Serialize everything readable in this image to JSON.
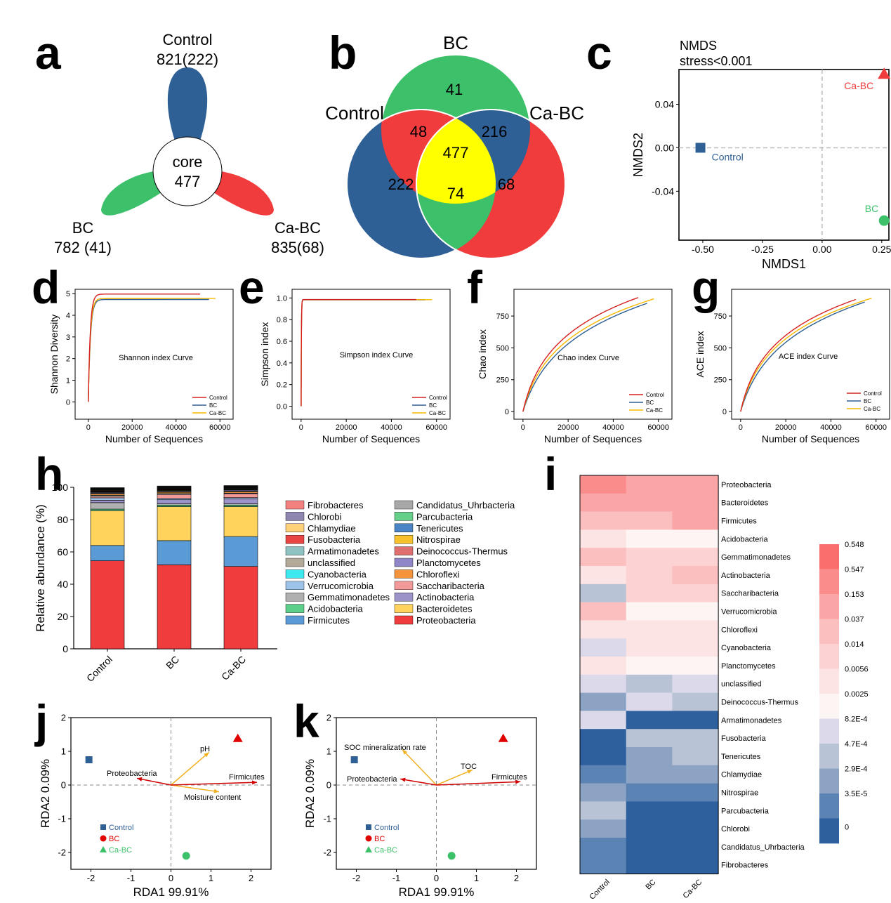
{
  "panel_letters": {
    "a": "a",
    "b": "b",
    "c": "c",
    "d": "d",
    "e": "e",
    "f": "f",
    "g": "g",
    "h": "h",
    "i": "i",
    "j": "j",
    "k": "k"
  },
  "colors": {
    "control": "#2e5f95",
    "bc": "#3cc06a",
    "cabc": "#f03c3c",
    "core_yellow": "#ffff00",
    "red_line": "#d62020",
    "blue_line": "#2e5f95",
    "orange_line": "#f5b800",
    "arrow_red": "#d00000",
    "arrow_orange": "#f0b020"
  },
  "chart_data": [
    {
      "id": "a",
      "type": "flower",
      "core_label": "core",
      "core_value": "477",
      "petals": [
        {
          "name": "Control",
          "value": "821(222)"
        },
        {
          "name": "BC",
          "value": "782 (41)"
        },
        {
          "name": "Ca-BC",
          "value": "835(68)"
        }
      ]
    },
    {
      "id": "b",
      "type": "venn",
      "sets": [
        "BC",
        "Control",
        "Ca-BC"
      ],
      "regions": {
        "bc_only": "41",
        "control_only": "222",
        "cabc_only": "68",
        "control_bc": "48",
        "bc_cabc": "216",
        "control_cabc": "74",
        "all": "477"
      }
    },
    {
      "id": "c",
      "type": "scatter",
      "title": "NMDS",
      "subtitle": "stress<0.001",
      "xlabel": "NMDS1",
      "ylabel": "NMDS2",
      "xlim": [
        -0.6,
        0.28
      ],
      "ylim": [
        -0.085,
        0.072
      ],
      "xticks": [
        "-0.50",
        "-0.25",
        "0.00",
        "0.25"
      ],
      "xtick_values": [
        -0.5,
        -0.25,
        0,
        0.25
      ],
      "yticks": [
        "0.04",
        "0.00",
        "-0.04"
      ],
      "ytick_values": [
        0.04,
        0,
        -0.04
      ],
      "points": [
        {
          "name": "Control",
          "x": -0.51,
          "y": 0.0,
          "marker": "square"
        },
        {
          "name": "Ca-BC",
          "x": 0.26,
          "y": 0.068,
          "marker": "triangle"
        },
        {
          "name": "BC",
          "x": 0.26,
          "y": -0.067,
          "marker": "circle"
        }
      ]
    },
    {
      "id": "d",
      "type": "line",
      "title": "Shannon index Curve",
      "xlabel": "Number of Sequences",
      "ylabel": "Shannon Diversity",
      "xlim": [
        -6000,
        66000
      ],
      "ylim": [
        -0.8,
        5.2
      ],
      "xticks": [
        "0",
        "20000",
        "40000",
        "60000"
      ],
      "xtick_values": [
        0,
        20000,
        40000,
        60000
      ],
      "yticks": [
        "0",
        "1",
        "2",
        "3",
        "4",
        "5"
      ],
      "ytick_values": [
        0,
        1,
        2,
        3,
        4,
        5
      ],
      "curve": "plateau",
      "series": [
        {
          "name": "Control",
          "max_x": 51000,
          "plateau": 4.98,
          "k": 900
        },
        {
          "name": "BC",
          "max_x": 55000,
          "plateau": 4.73,
          "k": 1000
        },
        {
          "name": "Ca-BC",
          "max_x": 58000,
          "plateau": 4.78,
          "k": 950
        }
      ]
    },
    {
      "id": "e",
      "type": "line",
      "title": "Simpson index Curve",
      "xlabel": "Number of Sequences",
      "ylabel": "Simpson index",
      "xlim": [
        -4000,
        66000
      ],
      "ylim": [
        -0.12,
        1.08
      ],
      "xticks": [
        "0",
        "20000",
        "40000",
        "60000"
      ],
      "xtick_values": [
        0,
        20000,
        40000,
        60000
      ],
      "yticks": [
        "0.0",
        "0.2",
        "0.4",
        "0.6",
        "0.8",
        "1.0"
      ],
      "ytick_values": [
        0,
        0.2,
        0.4,
        0.6,
        0.8,
        1.0
      ],
      "curve": "plateau",
      "series": [
        {
          "name": "Control",
          "max_x": 51000,
          "plateau": 0.985,
          "k": 120
        },
        {
          "name": "BC",
          "max_x": 55000,
          "plateau": 0.983,
          "k": 120
        },
        {
          "name": "Ca-BC",
          "max_x": 58000,
          "plateau": 0.984,
          "k": 120
        }
      ]
    },
    {
      "id": "f",
      "type": "line",
      "title": "Chao index Curve",
      "xlabel": "Number of Sequences",
      "ylabel": "Chao index",
      "xlim": [
        -4000,
        66000
      ],
      "ylim": [
        -60,
        960
      ],
      "xticks": [
        "0",
        "20000",
        "40000",
        "60000"
      ],
      "xtick_values": [
        0,
        20000,
        40000,
        60000
      ],
      "yticks": [
        "0",
        "250",
        "500",
        "750"
      ],
      "ytick_values": [
        0,
        250,
        500,
        750
      ],
      "curve": "saturation",
      "series": [
        {
          "name": "Control",
          "max_x": 51000,
          "end_y": 895,
          "k": 4500
        },
        {
          "name": "BC",
          "max_x": 55000,
          "end_y": 850,
          "k": 6500
        },
        {
          "name": "Ca-BC",
          "max_x": 58000,
          "end_y": 885,
          "k": 5000
        }
      ]
    },
    {
      "id": "g",
      "type": "line",
      "title": "ACE index Curve",
      "xlabel": "Number of Sequences",
      "ylabel": "ACE index",
      "xlim": [
        -4000,
        66000
      ],
      "ylim": [
        -60,
        960
      ],
      "xticks": [
        "0",
        "20000",
        "40000",
        "60000"
      ],
      "xtick_values": [
        0,
        20000,
        40000,
        60000
      ],
      "yticks": [
        "0",
        "250",
        "500",
        "750"
      ],
      "ytick_values": [
        0,
        250,
        500,
        750
      ],
      "curve": "saturation",
      "series": [
        {
          "name": "Control",
          "max_x": 51000,
          "end_y": 880,
          "k": 4200
        },
        {
          "name": "BC",
          "max_x": 55000,
          "end_y": 860,
          "k": 6000
        },
        {
          "name": "Ca-BC",
          "max_x": 58000,
          "end_y": 890,
          "k": 4600
        }
      ]
    },
    {
      "id": "h",
      "type": "bar",
      "stacked": true,
      "ylabel": "Relative abundance (%)",
      "ylim": [
        0,
        100
      ],
      "yticks": [
        "0",
        "20",
        "40",
        "60",
        "80",
        "100"
      ],
      "ytick_values": [
        0,
        20,
        40,
        60,
        80,
        100
      ],
      "categories": [
        "Control",
        "BC",
        "Ca-BC"
      ],
      "series": [
        {
          "name": "Proteobacteria",
          "color": "#f03c3c",
          "values": [
            54.5,
            52,
            51
          ]
        },
        {
          "name": "Firmicutes",
          "color": "#5b9bd5",
          "values": [
            9.5,
            15,
            18.5
          ]
        },
        {
          "name": "Bacteroidetes",
          "color": "#ffd35c",
          "values": [
            21.5,
            21,
            18.5
          ]
        },
        {
          "name": "Acidobacteria",
          "color": "#5ccf8a",
          "values": [
            1,
            1,
            1
          ]
        },
        {
          "name": "Gemmatimonadetes",
          "color": "#b0b0b0",
          "values": [
            4,
            0.8,
            0.8
          ]
        },
        {
          "name": "Actinobacteria",
          "color": "#9c94c8",
          "values": [
            1.5,
            2.5,
            3
          ]
        },
        {
          "name": "Verrucomicrobia",
          "color": "#9ec3e8",
          "values": [
            1.5,
            0.8,
            0.8
          ]
        },
        {
          "name": "Saccharibacteria",
          "color": "#f29a9a",
          "values": [
            1,
            2.5,
            2.5
          ]
        },
        {
          "name": "Cyanobacteria",
          "color": "#3ee8f0",
          "values": [
            0.5,
            0.5,
            0.3
          ]
        },
        {
          "name": "Chloroflexi",
          "color": "#f5923c",
          "values": [
            0.8,
            0.8,
            0.8
          ]
        },
        {
          "name": "unclassified",
          "color": "#b3aa9a",
          "values": [
            0.5,
            0.5,
            0.5
          ]
        },
        {
          "name": "Planctomycetes",
          "color": "#8e86c8",
          "values": [
            0.5,
            0.4,
            0.5
          ]
        },
        {
          "name": "Armatimonadetes",
          "color": "#8fc3c3",
          "values": [
            0.3,
            0.3,
            0.3
          ]
        },
        {
          "name": "Nitrospirae",
          "color": "#f8c22c",
          "values": [
            0.3,
            0.3,
            0.3
          ]
        },
        {
          "name": "Fusobacteria",
          "color": "#ea4545",
          "values": [
            0.3,
            0.3,
            0.2
          ]
        },
        {
          "name": "Deinococcus-Thermus",
          "color": "#e07070",
          "values": [
            0.3,
            0.3,
            0.3
          ]
        },
        {
          "name": "Chlamydiae",
          "color": "#ffd27a",
          "values": [
            0.3,
            0.3,
            0.3
          ]
        },
        {
          "name": "Tenericutes",
          "color": "#4a84c4",
          "values": [
            0.3,
            0.3,
            0.3
          ]
        },
        {
          "name": "Chlorobi",
          "color": "#8f86b0",
          "values": [
            0.3,
            0.3,
            0.3
          ]
        },
        {
          "name": "Parcubacteria",
          "color": "#66d08a",
          "values": [
            0.3,
            0.3,
            0.3
          ]
        },
        {
          "name": "Fibrobacteres",
          "color": "#f58080",
          "values": [
            0.3,
            0.3,
            0.3
          ]
        },
        {
          "name": "Candidatus_Uhrbacteria",
          "color": "#a8a8a8",
          "values": [
            0.3,
            0.3,
            0.3
          ]
        }
      ],
      "legend_left": [
        "Fibrobacteres",
        "Chlorobi",
        "Chlamydiae",
        "Fusobacteria",
        "Armatimonadetes",
        "unclassified",
        "Cyanobacteria",
        "Verrucomicrobia",
        "Gemmatimonadetes",
        "Acidobacteria",
        "Firmicutes"
      ],
      "legend_right": [
        "Candidatus_Uhrbacteria",
        "Parcubacteria",
        "Tenericutes",
        "Nitrospirae",
        "Deinococcus-Thermus",
        "Planctomycetes",
        "Chloroflexi",
        "Saccharibacteria",
        "Actinobacteria",
        "Bacteroidetes",
        "Proteobacteria"
      ]
    },
    {
      "id": "i",
      "type": "heatmap",
      "columns": [
        "Control",
        "BC",
        "Ca-BC"
      ],
      "rows": [
        "Proteobacteria",
        "Bacteroidetes",
        "Firmicutes",
        "Acidobacteria",
        "Gemmatimonadetes",
        "Actinobacteria",
        "Saccharibacteria",
        "Verrucomicrobia",
        "Chloroflexi",
        "Cyanobacteria",
        "Planctomycetes",
        "unclassified",
        "Deinococcus-Thermus",
        "Armatimonadetes",
        "Fusobacteria",
        "Tenericutes",
        "Chlamydiae",
        "Nitrospirae",
        "Parcubacteria",
        "Chlorobi",
        "Candidatus_Uhrbacteria",
        "Fibrobacteres"
      ],
      "scale_labels": [
        "0.548",
        "0.547",
        "0.153",
        "0.037",
        "0.014",
        "0.0056",
        "0.0025",
        "8.2E-4",
        "4.7E-4",
        "2.9E-4",
        "3.5E-5",
        "0"
      ],
      "scale_colors": [
        "#fb6e6e",
        "#fb8c8c",
        "#fba6a6",
        "#fbbfbf",
        "#fcd2d2",
        "#fde4e4",
        "#fdf4f4",
        "#dcdaea",
        "#b8c4d6",
        "#8ca3c4",
        "#5b83b4",
        "#2f609e"
      ],
      "values": [
        [
          1,
          2,
          2
        ],
        [
          2,
          2,
          2
        ],
        [
          3,
          3,
          2
        ],
        [
          5,
          6,
          6
        ],
        [
          3,
          4,
          4
        ],
        [
          5,
          4,
          3
        ],
        [
          8,
          4,
          4
        ],
        [
          3,
          6,
          6
        ],
        [
          5,
          5,
          5
        ],
        [
          7,
          5,
          5
        ],
        [
          5,
          6,
          6
        ],
        [
          7,
          8,
          7
        ],
        [
          9,
          7,
          8
        ],
        [
          7,
          11,
          11
        ],
        [
          11,
          8,
          8
        ],
        [
          11,
          9,
          8
        ],
        [
          10,
          9,
          9
        ],
        [
          9,
          10,
          10
        ],
        [
          8,
          11,
          11
        ],
        [
          9,
          11,
          11
        ],
        [
          10,
          11,
          11
        ],
        [
          10,
          11,
          11
        ]
      ]
    },
    {
      "id": "j",
      "type": "scatter",
      "xlabel": "RDA1  99.91%",
      "ylabel": "RDA2  0.09%",
      "xlim": [
        -2.5,
        2.5
      ],
      "ylim": [
        -2.5,
        2
      ],
      "xticks": [
        "-2",
        "-1",
        "0",
        "1",
        "2"
      ],
      "xtick_values": [
        -2,
        -1,
        0,
        1,
        2
      ],
      "yticks": [
        "2",
        "1",
        "0",
        "-1",
        "-2"
      ],
      "ytick_values": [
        2,
        1,
        0,
        -1,
        -2
      ],
      "points": [
        {
          "name": "Control",
          "x": -2.05,
          "y": 0.75,
          "marker": "square"
        },
        {
          "name": "Ca-BC",
          "x": 1.67,
          "y": 1.38,
          "marker": "triangle"
        },
        {
          "name": "BC",
          "x": 0.38,
          "y": -2.1,
          "marker": "circle"
        }
      ],
      "arrows": [
        {
          "name": "pH",
          "x": 0.95,
          "y": 0.97,
          "color": "orange"
        },
        {
          "name": "Moisture content",
          "x": 1.2,
          "y": -0.2,
          "color": "orange"
        },
        {
          "name": "Proteobacteria",
          "x": -0.85,
          "y": 0.2,
          "color": "red"
        },
        {
          "name": "Firmicutes",
          "x": 2.15,
          "y": 0.08,
          "color": "red"
        }
      ],
      "legend": [
        "Control",
        "BC",
        "Ca-BC"
      ]
    },
    {
      "id": "k",
      "type": "scatter",
      "xlabel": "RDA1  99.91%",
      "ylabel": "RDA2  0.09%",
      "xlim": [
        -2.5,
        2.5
      ],
      "ylim": [
        -2.5,
        2
      ],
      "xticks": [
        "-2",
        "-1",
        "0",
        "1",
        "2"
      ],
      "xtick_values": [
        -2,
        -1,
        0,
        1,
        2
      ],
      "yticks": [
        "2",
        "1",
        "0",
        "-1",
        "-2"
      ],
      "ytick_values": [
        2,
        1,
        0,
        -1,
        -2
      ],
      "points": [
        {
          "name": "Control",
          "x": -2.05,
          "y": 0.75,
          "marker": "square"
        },
        {
          "name": "Ca-BC",
          "x": 1.67,
          "y": 1.38,
          "marker": "triangle"
        },
        {
          "name": "BC",
          "x": 0.38,
          "y": -2.1,
          "marker": "circle"
        }
      ],
      "arrows": [
        {
          "name": "SOC mineralization rate",
          "x": -0.85,
          "y": 1.05,
          "color": "orange"
        },
        {
          "name": "TOC",
          "x": 0.9,
          "y": 0.45,
          "color": "orange"
        },
        {
          "name": "Proteobacteria",
          "x": -0.9,
          "y": 0.18,
          "color": "red"
        },
        {
          "name": "Firmicutes",
          "x": 2.1,
          "y": 0.1,
          "color": "red"
        }
      ],
      "legend": [
        "Control",
        "BC",
        "Ca-BC"
      ]
    }
  ]
}
